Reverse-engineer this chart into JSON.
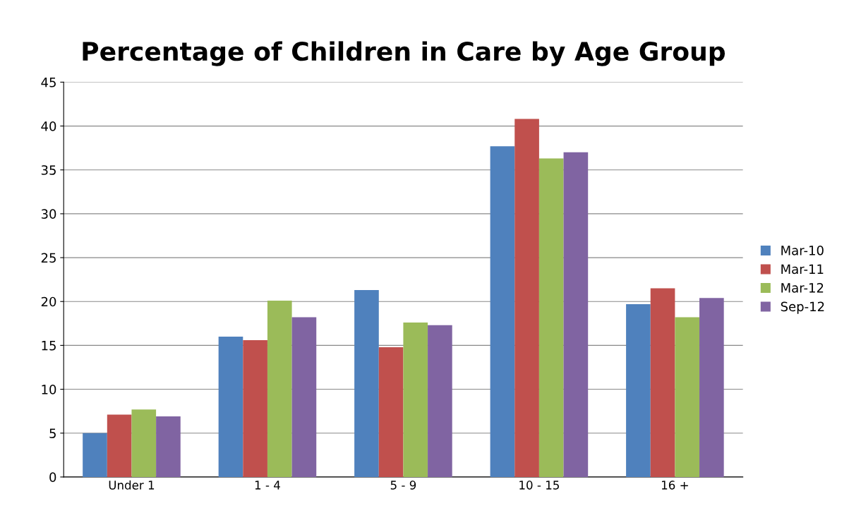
{
  "chart_data": {
    "type": "bar",
    "title": "Percentage of Children in Care by Age Group",
    "categories": [
      "Under 1",
      "1 - 4",
      "5 - 9",
      "10 - 15",
      "16 +"
    ],
    "series": [
      {
        "name": "Mar-10",
        "color": "#4f81bd",
        "values": [
          5.0,
          16.0,
          21.3,
          37.7,
          19.7
        ]
      },
      {
        "name": "Mar-11",
        "color": "#c0504d",
        "values": [
          7.1,
          15.6,
          14.8,
          40.8,
          21.5
        ]
      },
      {
        "name": "Mar-12",
        "color": "#9bbb59",
        "values": [
          7.7,
          20.1,
          17.6,
          36.3,
          18.2
        ]
      },
      {
        "name": "Sep-12",
        "color": "#8064a2",
        "values": [
          6.9,
          18.2,
          17.3,
          37.0,
          20.4
        ]
      }
    ],
    "ylim": [
      0,
      45
    ],
    "yticks": [
      0,
      5,
      10,
      15,
      20,
      25,
      30,
      35,
      40,
      45
    ],
    "grid": "y",
    "legend": "right"
  }
}
